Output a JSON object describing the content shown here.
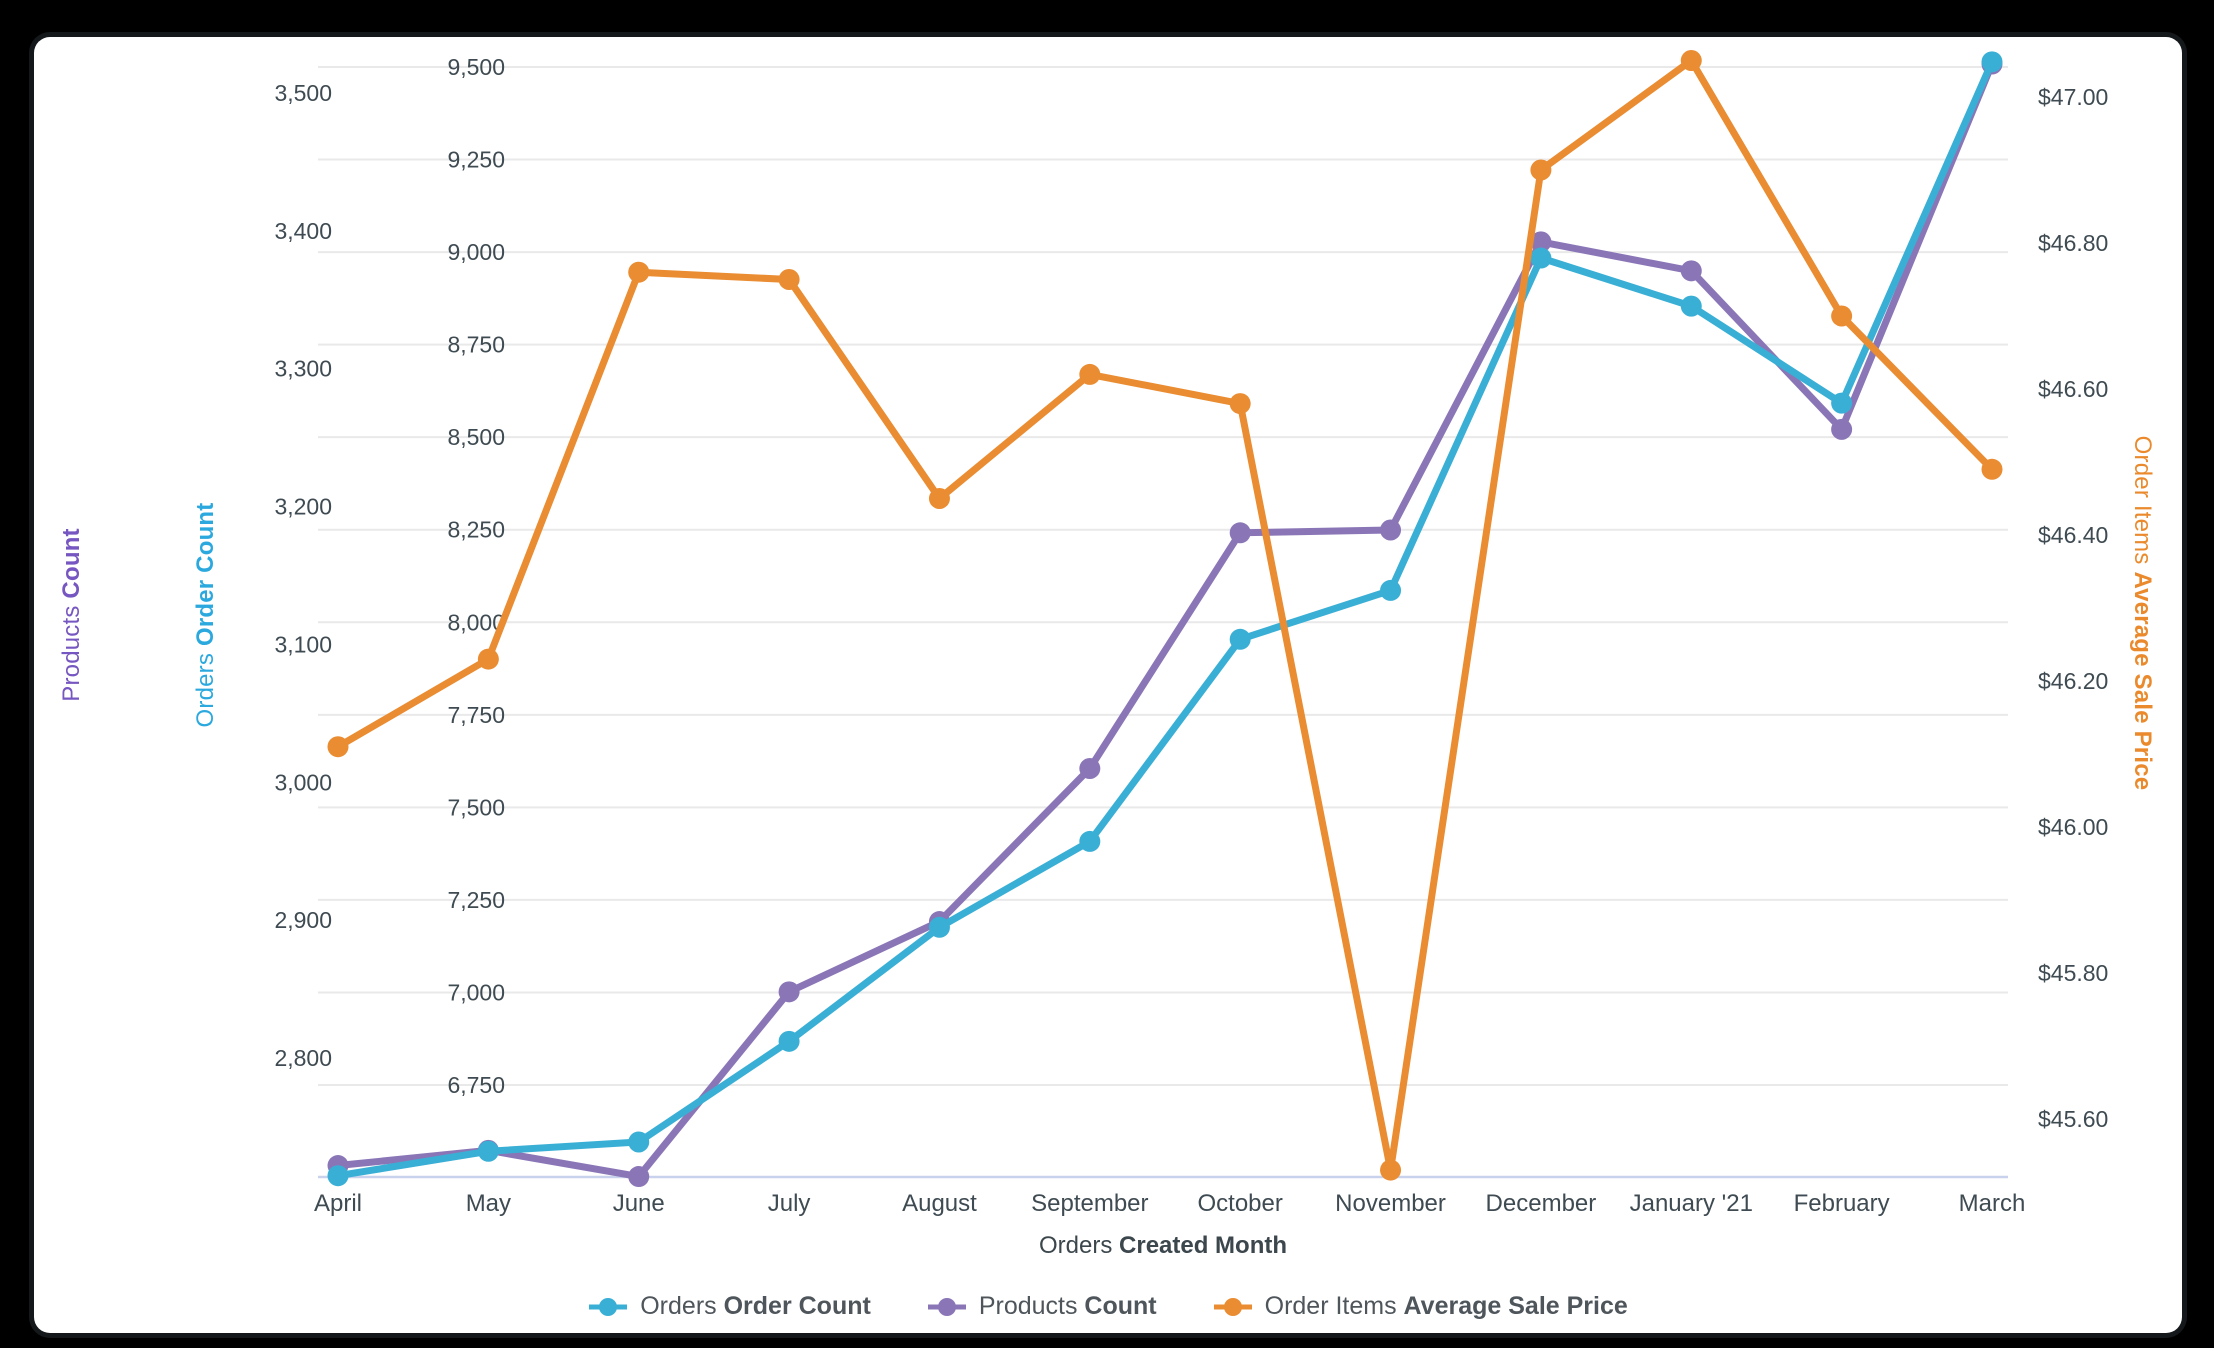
{
  "window": {
    "background": "#000000",
    "card_background": "#FFFFFF"
  },
  "chart_data": {
    "type": "line",
    "categories": [
      "April",
      "May",
      "June",
      "July",
      "August",
      "September",
      "October",
      "November",
      "December",
      "January '21",
      "February",
      "March"
    ],
    "x_axis": {
      "title_view": "Orders",
      "title_field": "Created Month",
      "title_color": "#3C474D"
    },
    "axes": {
      "products": {
        "title_view": "Products",
        "title_field": "Count",
        "title_color": "#7656C0",
        "tick_labels": [
          "3,500",
          "3,400",
          "3,300",
          "3,200",
          "3,100",
          "3,000",
          "2,900",
          "2,800"
        ],
        "tick_values": [
          3500,
          3400,
          3300,
          3200,
          3100,
          3000,
          2900,
          2800
        ],
        "range": [
          2713,
          3520
        ]
      },
      "orders": {
        "title_view": "Orders",
        "title_field": "Order Count",
        "title_color": "#2BA9DE",
        "tick_labels": [
          "9,500",
          "9,250",
          "9,000",
          "8,750",
          "8,500",
          "8,250",
          "8,000",
          "7,750",
          "7,500",
          "7,250",
          "7,000",
          "6,750"
        ],
        "tick_values": [
          9500,
          9250,
          9000,
          8750,
          8500,
          8250,
          8000,
          7750,
          7500,
          7250,
          7000,
          6750
        ],
        "range": [
          6500,
          9580
        ]
      },
      "price": {
        "title_view": "Order Items",
        "title_field": "Average Sale Price",
        "title_color": "#EA8A2C",
        "tick_labels": [
          "$47.00",
          "$46.80",
          "$46.60",
          "$46.40",
          "$46.20",
          "$46.00",
          "$45.80",
          "$45.60"
        ],
        "tick_values": [
          47.0,
          46.8,
          46.6,
          46.4,
          46.2,
          46.0,
          45.8,
          45.6
        ],
        "range": [
          45.52,
          47.08
        ]
      }
    },
    "series": [
      {
        "id": "orders-order-count",
        "label_view": "Orders",
        "label_field": "Order Count",
        "color": "#3AAFD5",
        "axis": "orders",
        "values": [
          6505,
          6571,
          6596,
          6868,
          7176,
          7408,
          7954,
          8086,
          8984,
          8854,
          8592,
          9514
        ]
      },
      {
        "id": "products-count",
        "label_view": "Products",
        "label_field": "Count",
        "color": "#8A76B6",
        "axis": "products",
        "values": [
          2722,
          2733,
          2714,
          2848,
          2899,
          3010,
          3181,
          3183,
          3392,
          3371,
          3256,
          3521
        ]
      },
      {
        "id": "order-items-average-sale-price",
        "label_view": "Order Items",
        "label_field": "Average Sale Price",
        "color": "#EA8C31",
        "axis": "price",
        "values": [
          46.11,
          46.23,
          46.76,
          46.75,
          46.45,
          46.62,
          46.58,
          45.53,
          46.9,
          47.05,
          46.7,
          46.49
        ]
      }
    ],
    "grid": {
      "line_color": "#E9E9E9",
      "baseline_color": "#C9D2EC"
    },
    "tick_label_color": "#3F4B52",
    "legend_text_color": "#4E555B"
  }
}
